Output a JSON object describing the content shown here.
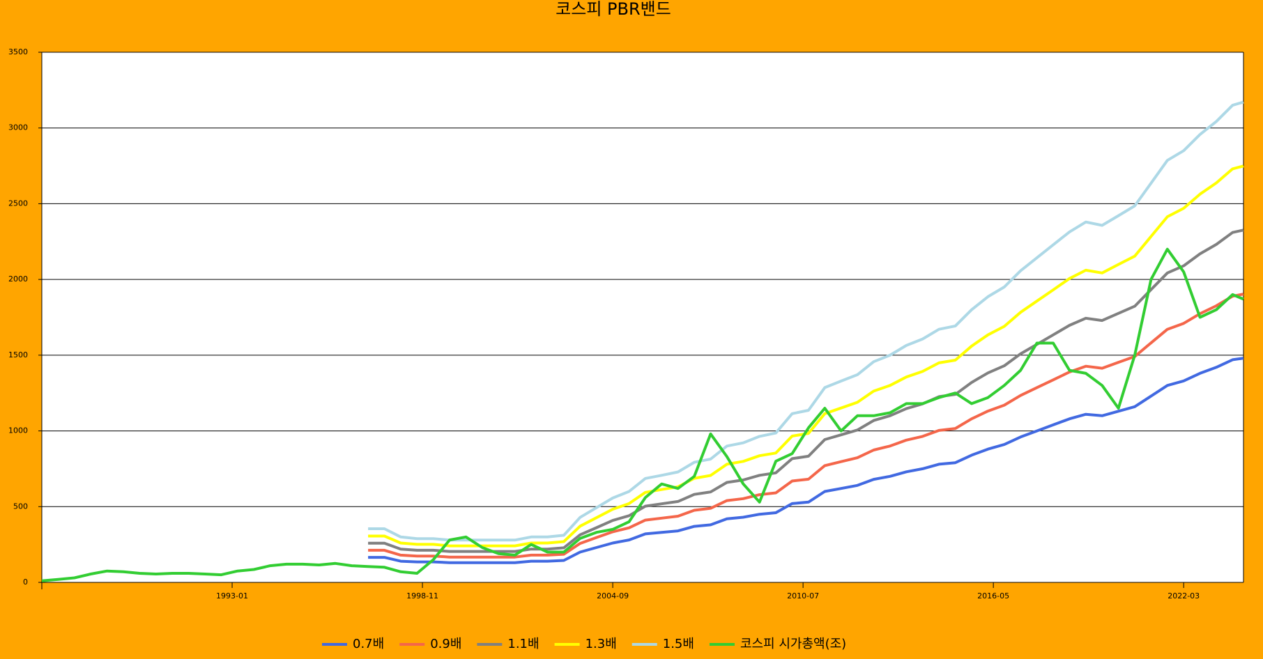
{
  "chart_data": {
    "type": "line",
    "title": "코스피 PBR밴드",
    "x": [
      "1987-03",
      "1987-09",
      "1988-03",
      "1988-09",
      "1989-03",
      "1989-09",
      "1990-03",
      "1990-09",
      "1991-03",
      "1991-09",
      "1992-03",
      "1992-09",
      "1993-03",
      "1993-09",
      "1994-03",
      "1994-09",
      "1995-03",
      "1995-09",
      "1996-03",
      "1996-09",
      "1997-03",
      "1997-09",
      "1998-03",
      "1998-09",
      "1999-03",
      "1999-09",
      "2000-03",
      "2000-09",
      "2001-03",
      "2001-09",
      "2002-03",
      "2002-09",
      "2003-03",
      "2003-09",
      "2004-03",
      "2004-09",
      "2005-03",
      "2005-09",
      "2006-03",
      "2006-09",
      "2007-03",
      "2007-09",
      "2008-03",
      "2008-09",
      "2009-03",
      "2009-09",
      "2010-03",
      "2010-09",
      "2011-03",
      "2011-09",
      "2012-03",
      "2012-09",
      "2013-03",
      "2013-09",
      "2014-03",
      "2014-09",
      "2015-03",
      "2015-09",
      "2016-03",
      "2016-09",
      "2017-03",
      "2017-09",
      "2018-03",
      "2018-09",
      "2019-03",
      "2019-09",
      "2020-03",
      "2020-09",
      "2021-03",
      "2021-09",
      "2022-03",
      "2022-09",
      "2023-03",
      "2023-09",
      "2024-01"
    ],
    "xlim": [
      "1987-03",
      "2024-01"
    ],
    "xticks": [
      "1993-01",
      "1998-11",
      "2004-09",
      "2010-07",
      "2016-05",
      "2022-03"
    ],
    "ylim": [
      0,
      3500
    ],
    "yticks": [
      0,
      500,
      1000,
      1500,
      2000,
      2500,
      3000,
      3500
    ],
    "grid": true,
    "series": [
      {
        "name": "0.7배",
        "color": "#4169e1",
        "values": [
          null,
          null,
          null,
          null,
          null,
          null,
          null,
          null,
          null,
          null,
          null,
          null,
          null,
          null,
          null,
          null,
          null,
          null,
          null,
          null,
          165,
          165,
          140,
          135,
          135,
          130,
          130,
          130,
          130,
          130,
          140,
          140,
          145,
          200,
          230,
          260,
          280,
          320,
          330,
          340,
          370,
          380,
          420,
          430,
          450,
          460,
          520,
          530,
          600,
          620,
          640,
          680,
          700,
          730,
          750,
          780,
          790,
          840,
          880,
          910,
          960,
          1000,
          1040,
          1080,
          1110,
          1100,
          1130,
          1160,
          1230,
          1300,
          1330,
          1380,
          1420,
          1470,
          1480
        ]
      },
      {
        "name": "0.9배",
        "color": "#f4664a",
        "values": [
          null,
          null,
          null,
          null,
          null,
          null,
          null,
          null,
          null,
          null,
          null,
          null,
          null,
          null,
          null,
          null,
          null,
          null,
          null,
          null,
          212,
          212,
          180,
          174,
          174,
          167,
          167,
          167,
          167,
          167,
          180,
          180,
          186,
          257,
          296,
          334,
          360,
          411,
          424,
          437,
          476,
          489,
          540,
          553,
          579,
          591,
          669,
          681,
          771,
          797,
          823,
          874,
          900,
          939,
          964,
          1003,
          1016,
          1080,
          1131,
          1170,
          1234,
          1286,
          1337,
          1389,
          1427,
          1414,
          1453,
          1491,
          1581,
          1671,
          1710,
          1774,
          1826,
          1890,
          1903
        ]
      },
      {
        "name": "1.1배",
        "color": "#808080",
        "values": [
          null,
          null,
          null,
          null,
          null,
          null,
          null,
          null,
          null,
          null,
          null,
          null,
          null,
          null,
          null,
          null,
          null,
          null,
          null,
          null,
          259,
          259,
          220,
          212,
          212,
          204,
          204,
          204,
          204,
          204,
          220,
          220,
          228,
          314,
          361,
          409,
          440,
          503,
          519,
          534,
          581,
          597,
          660,
          676,
          707,
          723,
          817,
          833,
          943,
          974,
          1006,
          1069,
          1100,
          1147,
          1179,
          1226,
          1241,
          1320,
          1383,
          1430,
          1509,
          1571,
          1634,
          1697,
          1744,
          1729,
          1776,
          1823,
          1933,
          2043,
          2090,
          2169,
          2231,
          2310,
          2326
        ]
      },
      {
        "name": "1.3배",
        "color": "#ffff00",
        "values": [
          null,
          null,
          null,
          null,
          null,
          null,
          null,
          null,
          null,
          null,
          null,
          null,
          null,
          null,
          null,
          null,
          null,
          null,
          null,
          null,
          306,
          306,
          260,
          251,
          251,
          241,
          241,
          241,
          241,
          241,
          260,
          260,
          269,
          371,
          427,
          483,
          520,
          594,
          613,
          631,
          687,
          706,
          780,
          799,
          836,
          854,
          966,
          984,
          1114,
          1151,
          1189,
          1263,
          1300,
          1356,
          1393,
          1449,
          1467,
          1560,
          1634,
          1690,
          1783,
          1857,
          1931,
          2006,
          2061,
          2043,
          2099,
          2154,
          2284,
          2414,
          2470,
          2563,
          2637,
          2730,
          2749
        ]
      },
      {
        "name": "1.5배",
        "color": "#add8e6",
        "values": [
          null,
          null,
          null,
          null,
          null,
          null,
          null,
          null,
          null,
          null,
          null,
          null,
          null,
          null,
          null,
          null,
          null,
          null,
          null,
          null,
          354,
          354,
          300,
          289,
          289,
          279,
          279,
          279,
          279,
          279,
          300,
          300,
          311,
          429,
          493,
          557,
          600,
          686,
          707,
          729,
          793,
          814,
          900,
          921,
          964,
          986,
          1114,
          1136,
          1286,
          1329,
          1371,
          1457,
          1500,
          1564,
          1607,
          1671,
          1693,
          1800,
          1886,
          1950,
          2057,
          2143,
          2229,
          2314,
          2379,
          2357,
          2421,
          2486,
          2636,
          2786,
          2850,
          2957,
          3043,
          3150,
          3171
        ]
      },
      {
        "name": "코스피 시가총액(조)",
        "color": "#32cd32",
        "values": [
          10,
          20,
          30,
          55,
          75,
          70,
          60,
          55,
          60,
          60,
          55,
          50,
          75,
          85,
          110,
          120,
          120,
          115,
          125,
          110,
          105,
          100,
          70,
          60,
          150,
          280,
          300,
          230,
          190,
          180,
          250,
          200,
          200,
          290,
          330,
          350,
          400,
          560,
          650,
          620,
          700,
          980,
          830,
          650,
          530,
          800,
          850,
          1020,
          1150,
          1000,
          1100,
          1100,
          1120,
          1180,
          1180,
          1220,
          1250,
          1180,
          1220,
          1300,
          1400,
          1580,
          1580,
          1400,
          1380,
          1300,
          1150,
          1500,
          2000,
          2200,
          2050,
          1750,
          1800,
          1900,
          1870
        ]
      }
    ]
  }
}
